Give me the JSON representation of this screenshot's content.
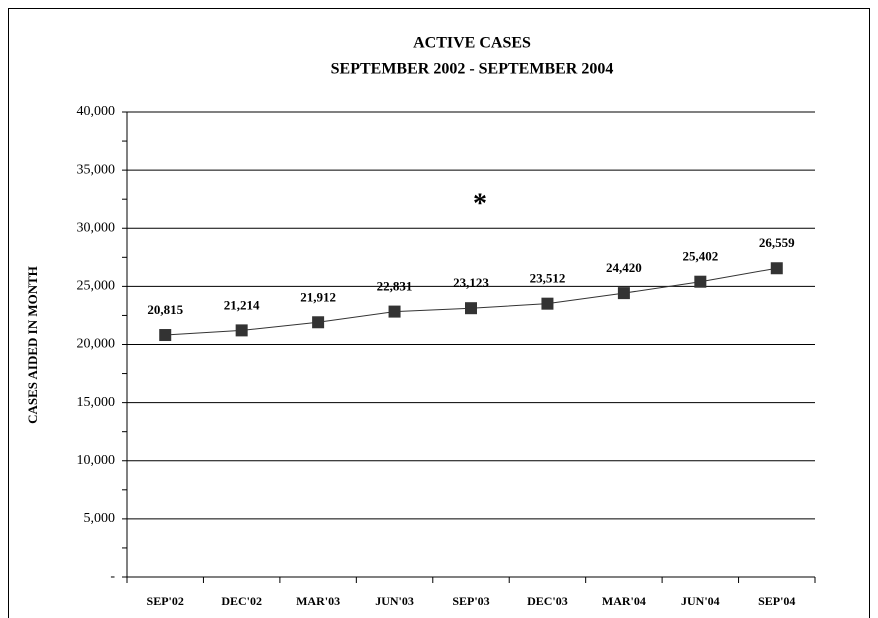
{
  "chart_data": {
    "type": "line",
    "title": "ACTIVE CASES",
    "subtitle": "SEPTEMBER 2002 - SEPTEMBER 2004",
    "y_label": "CASES AIDED IN MONTH",
    "annotation": "*",
    "categories": [
      "SEP'02",
      "DEC'02",
      "MAR'03",
      "JUN'03",
      "SEP'03",
      "DEC'03",
      "MAR'04",
      "JUN'04",
      "SEP'04"
    ],
    "series": [
      {
        "name": "Active cases",
        "color": "#333333",
        "values": [
          20815,
          21214,
          21912,
          22831,
          23123,
          23512,
          24420,
          25402,
          26559
        ],
        "value_labels": [
          "20,815",
          "21,214",
          "21,912",
          "22,831",
          "23,123",
          "23,512",
          "24,420",
          "25,402",
          "26,559"
        ]
      }
    ],
    "ylim": [
      0,
      40000
    ],
    "yticks": [
      {
        "value": 0,
        "label": "-"
      },
      {
        "value": 5000,
        "label": "5,000"
      },
      {
        "value": 10000,
        "label": "10,000"
      },
      {
        "value": 15000,
        "label": "15,000"
      },
      {
        "value": 20000,
        "label": "20,000"
      },
      {
        "value": 25000,
        "label": "25,000"
      },
      {
        "value": 30000,
        "label": "30,000"
      },
      {
        "value": 35000,
        "label": "35,000"
      },
      {
        "value": 40000,
        "label": "40,000"
      }
    ],
    "grid": true
  }
}
